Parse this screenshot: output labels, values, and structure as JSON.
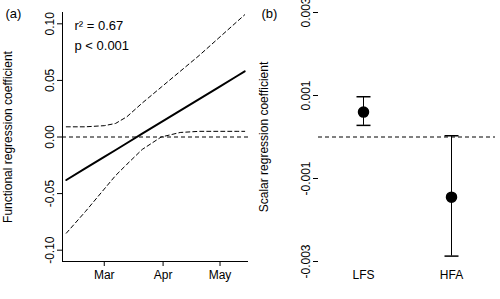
{
  "chart_data": [
    {
      "type": "line",
      "title": "(a)",
      "y_label": "Functional regression coefficient",
      "x": [
        40,
        50,
        60,
        66,
        72,
        80,
        90,
        100,
        110,
        120,
        130,
        134
      ],
      "series": [
        {
          "color": "#000000",
          "line_style": "solid",
          "values": [
            -0.038,
            -0.0278,
            -0.0176,
            -0.0115,
            -0.0053,
            0.0029,
            0.0131,
            0.0233,
            0.0335,
            0.0437,
            0.0539,
            0.058
          ]
        },
        {
          "color": "#000000",
          "line_style": "dashed",
          "values": [
            0.009,
            0.009,
            0.01,
            0.012,
            0.018,
            0.03,
            0.044,
            0.058,
            0.072,
            0.087,
            0.102,
            0.108
          ]
        },
        {
          "color": "#000000",
          "line_style": "dashed",
          "values": [
            -0.085,
            -0.066,
            -0.046,
            -0.034,
            -0.024,
            -0.011,
            0.0,
            0.004,
            0.005,
            0.005,
            0.005,
            0.005
          ]
        }
      ],
      "xlim": [
        38,
        136
      ],
      "xticks": [
        {
          "value": 60,
          "label": "Mar"
        },
        {
          "value": 91,
          "label": "Apr"
        },
        {
          "value": 121,
          "label": "May"
        }
      ],
      "ylim": [
        -0.11,
        0.11
      ],
      "yticks": [
        {
          "value": -0.1,
          "label": "-0.10"
        },
        {
          "value": -0.05,
          "label": "-0.05"
        },
        {
          "value": 0,
          "label": "0.00"
        },
        {
          "value": 0.05,
          "label": "0.05"
        },
        {
          "value": 0.1,
          "label": "0.10"
        }
      ],
      "reference_line": 0,
      "annotations": [
        "r² = 0.67",
        "p < 0.001"
      ]
    },
    {
      "type": "scatter",
      "title": "(b)",
      "y_label": "Scalar regression coefficient",
      "categories": [
        "LFS",
        "HFA"
      ],
      "values": [
        0.0006,
        -0.00145
      ],
      "error_low": [
        0.00028,
        -0.00287
      ],
      "error_high": [
        0.00097,
        3e-05
      ],
      "ylim": [
        -0.003,
        0.003
      ],
      "yticks": [
        -0.003,
        -0.001,
        0.001,
        0.003
      ],
      "reference_line": 0,
      "color": "#000000",
      "marker": "circle"
    }
  ]
}
